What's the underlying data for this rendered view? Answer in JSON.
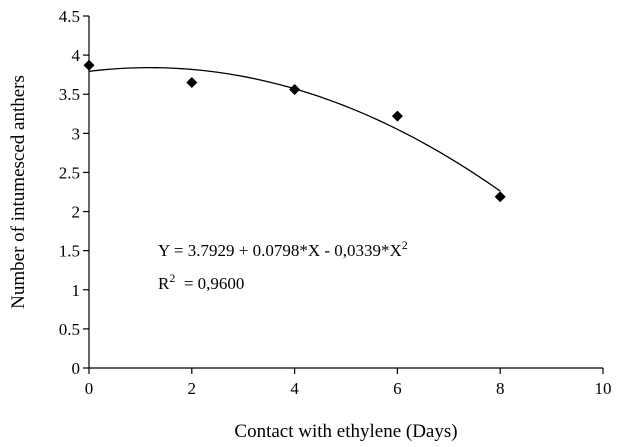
{
  "chart_data": {
    "type": "scatter",
    "xlabel": "Contact with ethylene (Days)",
    "ylabel": "Number of intumesced anthers",
    "xlim": [
      0,
      10
    ],
    "ylim": [
      0,
      4.5
    ],
    "x_ticks": [
      "0",
      "2",
      "4",
      "6",
      "8",
      "10"
    ],
    "y_ticks": [
      "0",
      "0.5",
      "1",
      "1.5",
      "2",
      "2.5",
      "3",
      "3.5",
      "4",
      "4.5"
    ],
    "grid": false,
    "series": [
      {
        "marker": "diamond",
        "color": "#000000",
        "points": [
          {
            "x": 0,
            "y": 3.87
          },
          {
            "x": 2,
            "y": 3.65
          },
          {
            "x": 4,
            "y": 3.56
          },
          {
            "x": 6,
            "y": 3.22
          },
          {
            "x": 8,
            "y": 2.19
          }
        ]
      }
    ],
    "trendline": {
      "type": "polynomial",
      "coefficients": [
        3.7929,
        0.0798,
        -0.0339
      ],
      "x_range": [
        0,
        8
      ],
      "color": "#000000"
    },
    "annotations": {
      "equation": {
        "main": "Y = 3.7929 + 0.0798*X - 0,0339*X",
        "superscript": "2"
      },
      "r_squared": {
        "prefix": "R",
        "superscript": "2",
        "suffix": "  = 0,9600"
      }
    }
  }
}
